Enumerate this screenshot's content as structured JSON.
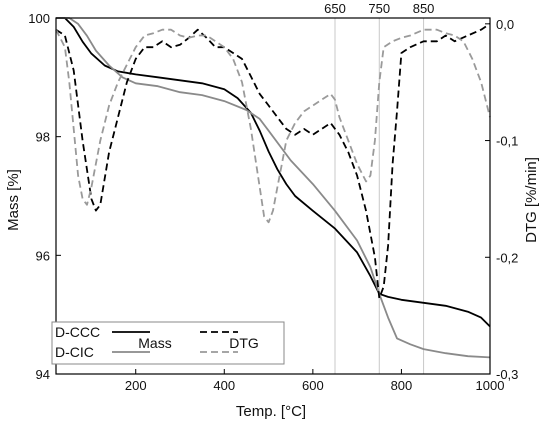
{
  "chart_data": {
    "type": "line",
    "xlabel": "Temp. [°C]",
    "ylabel": "Mass [%]",
    "y2label": "DTG [%/min]",
    "xlim": [
      20,
      1000
    ],
    "ylim": [
      94,
      100
    ],
    "y2lim": [
      -0.3,
      0.005
    ],
    "x_ticks": [
      200,
      400,
      600,
      800,
      1000
    ],
    "y_ticks": [
      94,
      96,
      98,
      100
    ],
    "y2_ticks": [
      -0.3,
      -0.2,
      -0.1,
      0.0
    ],
    "y2_tick_labels": [
      "-0,3",
      "-0,2",
      "-0,1",
      "0,0"
    ],
    "reference_lines": [
      650,
      750,
      850
    ],
    "grid": false,
    "legend": {
      "placement": "bottom-left",
      "rows": [
        "D-CCC",
        "D-CIC"
      ],
      "columns": [
        "Mass",
        "DTG"
      ]
    },
    "series": [
      {
        "name": "D-CCC",
        "quantity": "Mass",
        "axis": "left",
        "color": "#000000",
        "dash": "solid",
        "x": [
          20,
          40,
          60,
          80,
          100,
          130,
          160,
          200,
          250,
          300,
          350,
          400,
          430,
          460,
          480,
          500,
          520,
          540,
          560,
          600,
          650,
          700,
          730,
          750,
          770,
          800,
          850,
          900,
          950,
          980,
          1000
        ],
        "y": [
          100,
          100,
          99.85,
          99.6,
          99.4,
          99.2,
          99.1,
          99.05,
          99.0,
          98.95,
          98.9,
          98.8,
          98.65,
          98.4,
          98.1,
          97.75,
          97.45,
          97.2,
          97.0,
          96.75,
          96.45,
          96.05,
          95.65,
          95.35,
          95.3,
          95.25,
          95.2,
          95.15,
          95.05,
          94.95,
          94.8
        ]
      },
      {
        "name": "D-CIC",
        "quantity": "Mass",
        "axis": "left",
        "color": "#8a8a8a",
        "dash": "solid",
        "x": [
          20,
          50,
          70,
          90,
          110,
          140,
          170,
          200,
          250,
          300,
          350,
          400,
          450,
          480,
          500,
          550,
          600,
          650,
          700,
          730,
          750,
          770,
          790,
          820,
          850,
          900,
          950,
          1000
        ],
        "y": [
          100,
          100,
          99.9,
          99.7,
          99.45,
          99.2,
          99.0,
          98.9,
          98.85,
          98.75,
          98.7,
          98.6,
          98.45,
          98.3,
          98.1,
          97.6,
          97.2,
          96.75,
          96.25,
          95.8,
          95.35,
          94.95,
          94.6,
          94.5,
          94.42,
          94.35,
          94.3,
          94.28
        ]
      },
      {
        "name": "D-CCC",
        "quantity": "DTG",
        "axis": "right",
        "color": "#000000",
        "dash": "dashed",
        "x": [
          20,
          40,
          60,
          80,
          100,
          110,
          120,
          140,
          160,
          180,
          200,
          220,
          240,
          260,
          280,
          300,
          320,
          340,
          360,
          380,
          400,
          420,
          440,
          460,
          480,
          500,
          520,
          540,
          560,
          580,
          600,
          620,
          640,
          660,
          680,
          700,
          720,
          740,
          750,
          760,
          770,
          780,
          790,
          800,
          820,
          850,
          880,
          900,
          920,
          950,
          980,
          1000
        ],
        "y": [
          -0.005,
          -0.01,
          -0.04,
          -0.1,
          -0.15,
          -0.16,
          -0.155,
          -0.11,
          -0.08,
          -0.05,
          -0.03,
          -0.02,
          -0.02,
          -0.015,
          -0.02,
          -0.018,
          -0.012,
          -0.005,
          -0.012,
          -0.02,
          -0.02,
          -0.025,
          -0.03,
          -0.045,
          -0.06,
          -0.07,
          -0.08,
          -0.09,
          -0.095,
          -0.09,
          -0.095,
          -0.09,
          -0.085,
          -0.095,
          -0.11,
          -0.13,
          -0.16,
          -0.2,
          -0.235,
          -0.225,
          -0.19,
          -0.12,
          -0.075,
          -0.025,
          -0.02,
          -0.015,
          -0.015,
          -0.01,
          -0.015,
          -0.01,
          -0.005,
          0.0
        ]
      },
      {
        "name": "D-CIC",
        "quantity": "DTG",
        "axis": "right",
        "color": "#9a9a9a",
        "dash": "dashed",
        "x": [
          20,
          40,
          50,
          60,
          70,
          80,
          90,
          100,
          120,
          140,
          160,
          180,
          200,
          220,
          240,
          260,
          280,
          300,
          320,
          340,
          360,
          380,
          400,
          420,
          440,
          460,
          480,
          490,
          500,
          510,
          520,
          530,
          540,
          560,
          580,
          600,
          620,
          640,
          650,
          660,
          680,
          700,
          720,
          730,
          740,
          750,
          760,
          780,
          800,
          820,
          850,
          880,
          900,
          920,
          940,
          960,
          980,
          1000
        ],
        "y": [
          -0.005,
          -0.02,
          -0.05,
          -0.09,
          -0.13,
          -0.15,
          -0.155,
          -0.14,
          -0.1,
          -0.07,
          -0.05,
          -0.035,
          -0.02,
          -0.01,
          -0.008,
          -0.005,
          -0.005,
          -0.01,
          -0.012,
          -0.01,
          -0.01,
          -0.015,
          -0.02,
          -0.03,
          -0.05,
          -0.09,
          -0.14,
          -0.165,
          -0.17,
          -0.16,
          -0.14,
          -0.12,
          -0.1,
          -0.085,
          -0.075,
          -0.07,
          -0.065,
          -0.06,
          -0.065,
          -0.08,
          -0.1,
          -0.12,
          -0.135,
          -0.13,
          -0.1,
          -0.05,
          -0.02,
          -0.015,
          -0.012,
          -0.01,
          -0.005,
          -0.005,
          -0.008,
          -0.01,
          -0.015,
          -0.03,
          -0.05,
          -0.08
        ]
      }
    ]
  }
}
